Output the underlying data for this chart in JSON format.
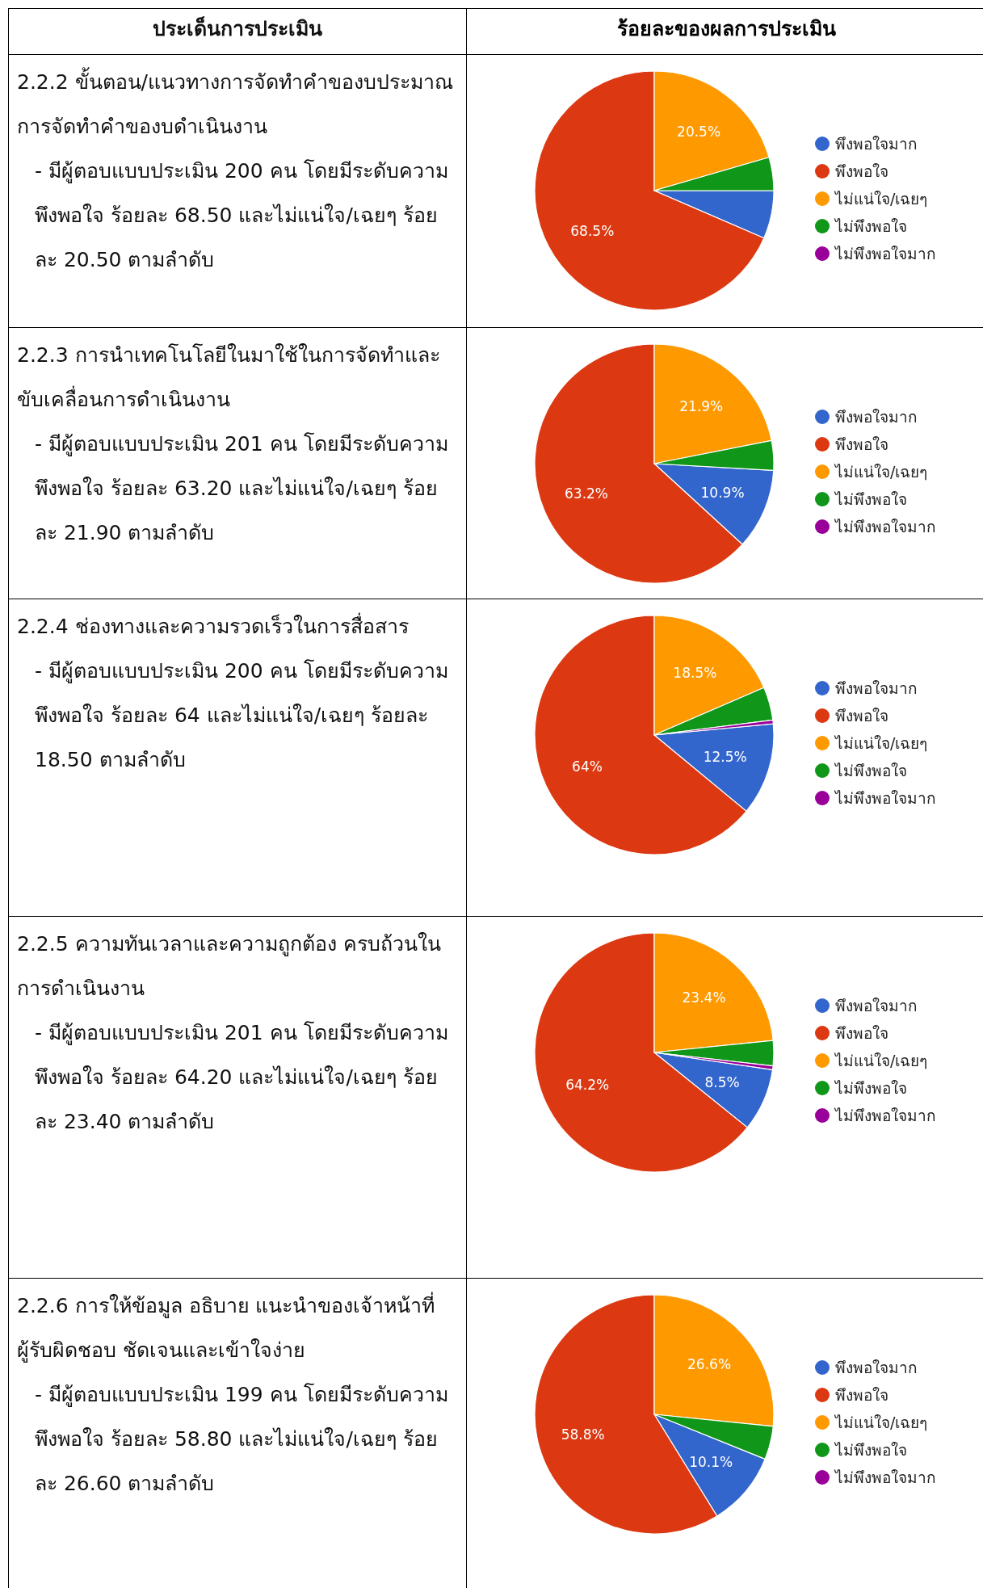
{
  "chart_data": [
    {
      "type": "other",
      "annotations": [
        "ประเด็นการประเมิน",
        "ร้อยละของผลการประเมิน"
      ]
    },
    {
      "type": "pie",
      "title": "2.2.2 ขั้นตอน/แนวทางการจัดทำคำของบประมาณ การจัดทำคำของบดำเนินงาน",
      "annotations": [
        "- มีผู้ตอบแบบประเมิน 200 คน โดยมีระดับความพึงพอใจ ร้อยละ 68.50 และไม่แน่ใจ/เฉยๆ ร้อยละ 20.50 ตามลำดับ"
      ],
      "categories": [
        "พึงพอใจมาก",
        "พึงพอใจ",
        "ไม่แน่ใจ/เฉยๆ",
        "ไม่พึงพอใจ",
        "ไม่พึงพอใจมาก"
      ],
      "values": [
        6.5,
        68.5,
        20.5,
        4.5,
        0
      ],
      "colors": [
        "#3366cc",
        "#dc3912",
        "#ff9900",
        "#109618",
        "#990099"
      ],
      "value_labels": [
        null,
        "68.5%",
        "20.5%",
        null,
        null
      ],
      "legend": "right"
    },
    {
      "type": "pie",
      "title": "2.2.3 การนำเทคโนโลยีในมาใช้ในการจัดทำและขับเคลื่อนการดำเนินงาน",
      "annotations": [
        "- มีผู้ตอบแบบประเมิน 201 คน โดยมีระดับความพึงพอใจ ร้อยละ 63.20 และไม่แน่ใจ/เฉยๆ ร้อยละ 21.90 ตามลำดับ"
      ],
      "categories": [
        "พึงพอใจมาก",
        "พึงพอใจ",
        "ไม่แน่ใจ/เฉยๆ",
        "ไม่พึงพอใจ",
        "ไม่พึงพอใจมาก"
      ],
      "values": [
        10.9,
        63.2,
        21.9,
        4.0,
        0
      ],
      "colors": [
        "#3366cc",
        "#dc3912",
        "#ff9900",
        "#109618",
        "#990099"
      ],
      "value_labels": [
        "10.9%",
        "63.2%",
        "21.9%",
        null,
        null
      ],
      "legend": "right"
    },
    {
      "type": "pie",
      "title": "2.2.4 ช่องทางและความรวดเร็วในการสื่อสาร",
      "annotations": [
        "- มีผู้ตอบแบบประเมิน 200 คน โดยมีระดับความพึงพอใจ ร้อยละ 64 และไม่แน่ใจ/เฉยๆ ร้อยละ 18.50 ตามลำดับ"
      ],
      "categories": [
        "พึงพอใจมาก",
        "พึงพอใจ",
        "ไม่แน่ใจ/เฉยๆ",
        "ไม่พึงพอใจ",
        "ไม่พึงพอใจมาก"
      ],
      "values": [
        12.5,
        64,
        18.5,
        4.5,
        0.5
      ],
      "colors": [
        "#3366cc",
        "#dc3912",
        "#ff9900",
        "#109618",
        "#990099"
      ],
      "value_labels": [
        "12.5%",
        "64%",
        "18.5%",
        null,
        null
      ],
      "legend": "right"
    },
    {
      "type": "pie",
      "title": "2.2.5 ความทันเวลาและความถูกต้อง ครบถ้วนในการดำเนินงาน",
      "annotations": [
        "- มีผู้ตอบแบบประเมิน 201 คน โดยมีระดับความพึงพอใจ ร้อยละ 64.20 และไม่แน่ใจ/เฉยๆ ร้อยละ 23.40 ตามลำดับ"
      ],
      "categories": [
        "พึงพอใจมาก",
        "พึงพอใจ",
        "ไม่แน่ใจ/เฉยๆ",
        "ไม่พึงพอใจ",
        "ไม่พึงพอใจมาก"
      ],
      "values": [
        8.5,
        64.2,
        23.4,
        3.4,
        0.5
      ],
      "colors": [
        "#3366cc",
        "#dc3912",
        "#ff9900",
        "#109618",
        "#990099"
      ],
      "value_labels": [
        "8.5%",
        "64.2%",
        "23.4%",
        null,
        null
      ],
      "legend": "right"
    },
    {
      "type": "pie",
      "title": "2.2.6 การให้ข้อมูล อธิบาย แนะนำของเจ้าหน้าที่ผู้รับผิดชอบ ชัดเจนและเข้าใจง่าย",
      "annotations": [
        "- มีผู้ตอบแบบประเมิน 199 คน โดยมีระดับความพึงพอใจ ร้อยละ 58.80 และไม่แน่ใจ/เฉยๆ ร้อยละ 26.60 ตามลำดับ"
      ],
      "categories": [
        "พึงพอใจมาก",
        "พึงพอใจ",
        "ไม่แน่ใจ/เฉยๆ",
        "ไม่พึงพอใจ",
        "ไม่พึงพอใจมาก"
      ],
      "values": [
        10.1,
        58.8,
        26.6,
        4.5,
        0
      ],
      "colors": [
        "#3366cc",
        "#dc3912",
        "#ff9900",
        "#109618",
        "#990099"
      ],
      "value_labels": [
        "10.1%",
        "58.8%",
        "26.6%",
        null,
        null
      ],
      "legend": "right"
    }
  ]
}
